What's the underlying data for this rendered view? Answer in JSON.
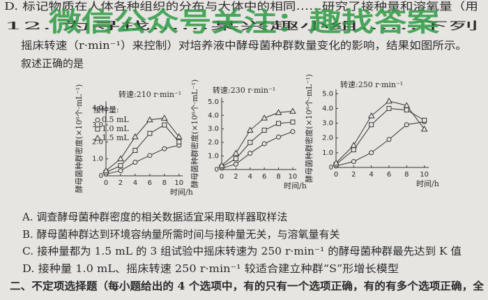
{
  "question_lines": [
    "D. 标记物质在人体各种组织的分布与大体中的相同……研究了接种量和溶氧量（用",
    "12. 为寻找……某兴趣小组……下列",
    "摇床转速（r·min⁻¹）来控制）对培养液中酵母菌种群数量变化的影响，结果如图所示。",
    "叙述正确的是"
  ],
  "watermark": "微信公众号关注：趣找答案",
  "chart_data": [
    {
      "type": "line",
      "title": "转速:210 r·min⁻¹",
      "x_label": "时间/h",
      "y_label": "酵母菌种群密度(×10⁶个·mL⁻¹)",
      "x": [
        0,
        2,
        4,
        6,
        8,
        10
      ],
      "xlim": [
        0,
        10.5
      ],
      "xticks": [
        0,
        2,
        4,
        6,
        8,
        10
      ],
      "ylim": [
        0,
        4.4
      ],
      "yticks": [
        0,
        {
          "value": 1,
          "label": "1.0"
        },
        {
          "value": 2,
          "label": "2.0"
        },
        {
          "value": 3,
          "label": "3.0"
        },
        {
          "value": 4,
          "label": "4.0"
        }
      ],
      "legend_title": "接种量:",
      "series": [
        {
          "name": "0.5 mL",
          "marker": "circle",
          "color": "#333333",
          "values": [
            0.1,
            0.3,
            0.8,
            1.2,
            1.6,
            1.8
          ]
        },
        {
          "name": "1.0 mL",
          "marker": "square",
          "color": "#333333",
          "values": [
            0.2,
            0.6,
            1.5,
            2.5,
            3.0,
            2.0
          ]
        },
        {
          "name": "1.5 mL",
          "marker": "triangle",
          "color": "#333333",
          "values": [
            0.3,
            1.0,
            2.3,
            3.3,
            3.4,
            2.3
          ]
        }
      ]
    },
    {
      "type": "line",
      "title": "转速:230 r·min⁻¹",
      "x_label": "时间/h",
      "y_label": "酵母菌种群密度(×10⁶个·mL⁻¹)",
      "x": [
        0,
        2,
        4,
        6,
        8,
        10
      ],
      "xlim": [
        0,
        10.5
      ],
      "xticks": [
        0,
        2,
        4,
        6,
        8,
        10
      ],
      "ylim": [
        0,
        5.3
      ],
      "yticks": [
        0,
        {
          "value": 1,
          "label": "1.0"
        },
        {
          "value": 2,
          "label": "2.0"
        },
        {
          "value": 3,
          "label": "3.0"
        },
        {
          "value": 4,
          "label": "4.0"
        },
        {
          "value": 5,
          "label": "5.0"
        }
      ],
      "series": [
        {
          "marker": "circle",
          "color": "#333333",
          "values": [
            0.1,
            0.4,
            1.2,
            1.9,
            2.4,
            2.8
          ]
        },
        {
          "marker": "square",
          "color": "#333333",
          "values": [
            0.2,
            0.8,
            2.0,
            2.9,
            3.4,
            3.5
          ]
        },
        {
          "marker": "triangle",
          "color": "#333333",
          "values": [
            0.3,
            1.2,
            2.9,
            3.8,
            4.2,
            4.3
          ]
        }
      ]
    },
    {
      "type": "line",
      "title": "转速:250 r·min⁻¹",
      "x_label": "时间/h",
      "y_label": "酵母菌种群密度(×10⁶个·mL⁻¹)",
      "x": [
        0,
        2,
        4,
        6,
        8,
        10
      ],
      "xlim": [
        0,
        10.5
      ],
      "xticks": [
        0,
        2,
        4,
        6,
        8,
        10
      ],
      "ylim": [
        0,
        5.3
      ],
      "yticks": [
        0,
        {
          "value": 1,
          "label": "1.0"
        },
        {
          "value": 2,
          "label": "2.0"
        },
        {
          "value": 3,
          "label": "3.0"
        },
        {
          "value": 4,
          "label": "4.0"
        },
        {
          "value": 5,
          "label": "5.0"
        }
      ],
      "series": [
        {
          "marker": "circle",
          "color": "#333333",
          "values": [
            0.1,
            0.4,
            1.0,
            1.9,
            2.9,
            3.1
          ]
        },
        {
          "marker": "square",
          "color": "#333333",
          "values": [
            0.2,
            1.2,
            2.9,
            4.0,
            3.9,
            3.2
          ]
        },
        {
          "marker": "triangle",
          "color": "#333333",
          "values": [
            0.3,
            1.5,
            3.5,
            4.5,
            4.2,
            2.6
          ]
        }
      ]
    }
  ],
  "options": [
    "A. 调查酵母菌种群密度的相关数据适宜采用取样器取样法",
    "B. 酵母菌种群达到环境容纳量所需时间与接种量无关，与溶氧量有关",
    "C. 接种量都为 1.5 mL 的 3 组试验中摇床转速为 250 r·min⁻¹ 的酵母菌种群最先达到 K 值",
    "D. 接种量 1.0 mL、摇床转速 250 r·min⁻¹ 较适合建立种群“S”形增长模型"
  ],
  "section": "二、不定项选择题（每小题给出的 4 个选项中，有的只有一个选项正确，有的有多个选项正确，全"
}
